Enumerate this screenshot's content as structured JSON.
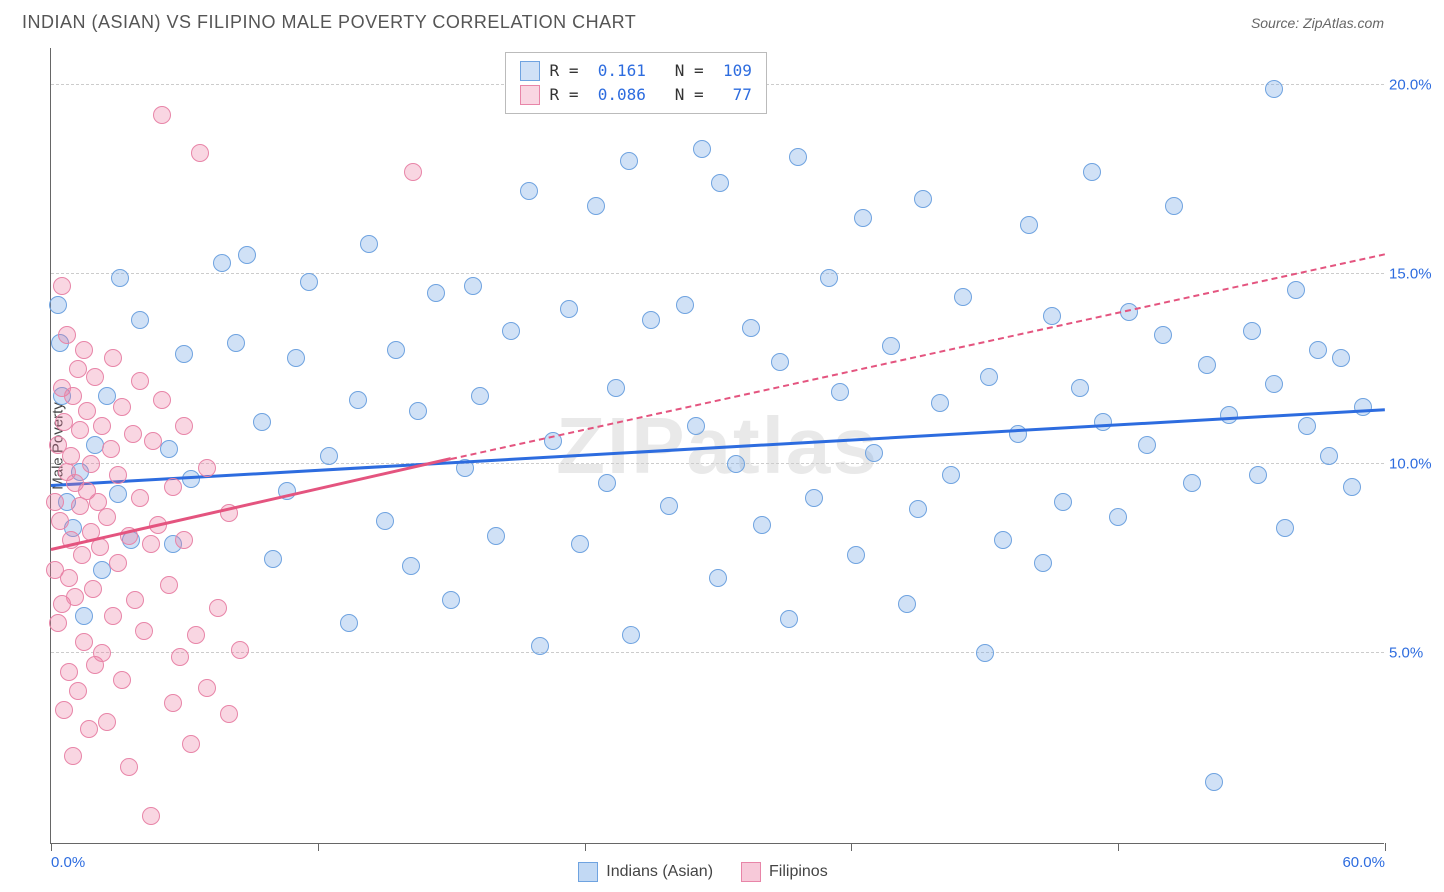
{
  "title": "INDIAN (ASIAN) VS FILIPINO MALE POVERTY CORRELATION CHART",
  "source_label": "Source:",
  "source_value": "ZipAtlas.com",
  "watermark": "ZIPatlas",
  "yaxis_label": "Male Poverty",
  "chart": {
    "type": "scatter",
    "xlim": [
      0,
      60
    ],
    "ylim": [
      0,
      21
    ],
    "x_ticks": [
      0,
      12,
      24,
      36,
      48,
      60
    ],
    "x_tick_labels": [
      "0.0%",
      "",
      "",
      "",
      "",
      "60.0%"
    ],
    "y_gridlines": [
      5,
      10,
      15,
      20
    ],
    "y_tick_labels": [
      "5.0%",
      "10.0%",
      "15.0%",
      "20.0%"
    ],
    "background_color": "#ffffff",
    "grid_color": "#cccccc",
    "axis_color": "#666666",
    "tick_label_color": "#2d6cdf",
    "series": [
      {
        "name": "Indians (Asian)",
        "color_fill": "rgba(120,170,230,0.35)",
        "color_stroke": "#6fa3e0",
        "trend_color": "#2d6cdf",
        "trend_solid": true,
        "trend": {
          "x1": 0,
          "y1": 9.4,
          "x2": 60,
          "y2": 11.4
        },
        "R": "0.161",
        "N": "109",
        "marker_radius": 9,
        "points": [
          [
            0.3,
            14.2
          ],
          [
            0.4,
            13.2
          ],
          [
            0.5,
            11.8
          ],
          [
            0.7,
            9.0
          ],
          [
            1.0,
            8.3
          ],
          [
            1.3,
            9.8
          ],
          [
            1.5,
            6.0
          ],
          [
            2.0,
            10.5
          ],
          [
            2.3,
            7.2
          ],
          [
            2.5,
            11.8
          ],
          [
            3.0,
            9.2
          ],
          [
            3.1,
            14.9
          ],
          [
            3.6,
            8.0
          ],
          [
            4.0,
            13.8
          ],
          [
            5.3,
            10.4
          ],
          [
            5.5,
            7.9
          ],
          [
            6.0,
            12.9
          ],
          [
            6.3,
            9.6
          ],
          [
            7.7,
            15.3
          ],
          [
            8.3,
            13.2
          ],
          [
            8.8,
            15.5
          ],
          [
            9.5,
            11.1
          ],
          [
            10.0,
            7.5
          ],
          [
            10.6,
            9.3
          ],
          [
            11.0,
            12.8
          ],
          [
            11.6,
            14.8
          ],
          [
            12.5,
            10.2
          ],
          [
            13.4,
            5.8
          ],
          [
            13.8,
            11.7
          ],
          [
            14.3,
            15.8
          ],
          [
            15.0,
            8.5
          ],
          [
            15.5,
            13.0
          ],
          [
            16.2,
            7.3
          ],
          [
            16.5,
            11.4
          ],
          [
            17.3,
            14.5
          ],
          [
            18.0,
            6.4
          ],
          [
            18.6,
            9.9
          ],
          [
            19.0,
            14.7
          ],
          [
            19.3,
            11.8
          ],
          [
            20.0,
            8.1
          ],
          [
            20.7,
            13.5
          ],
          [
            21.5,
            17.2
          ],
          [
            22.0,
            5.2
          ],
          [
            22.6,
            10.6
          ],
          [
            23.3,
            14.1
          ],
          [
            23.8,
            7.9
          ],
          [
            24.5,
            16.8
          ],
          [
            25.0,
            9.5
          ],
          [
            25.4,
            12.0
          ],
          [
            26.0,
            18.0
          ],
          [
            26.1,
            5.5
          ],
          [
            27.0,
            13.8
          ],
          [
            27.8,
            8.9
          ],
          [
            28.5,
            14.2
          ],
          [
            29.0,
            11.0
          ],
          [
            29.3,
            18.3
          ],
          [
            30.0,
            7.0
          ],
          [
            30.1,
            17.4
          ],
          [
            30.8,
            10.0
          ],
          [
            31.5,
            13.6
          ],
          [
            32.0,
            8.4
          ],
          [
            32.8,
            12.7
          ],
          [
            33.2,
            5.9
          ],
          [
            33.6,
            18.1
          ],
          [
            34.3,
            9.1
          ],
          [
            35.0,
            14.9
          ],
          [
            35.5,
            11.9
          ],
          [
            36.2,
            7.6
          ],
          [
            36.5,
            16.5
          ],
          [
            37.0,
            10.3
          ],
          [
            37.8,
            13.1
          ],
          [
            38.5,
            6.3
          ],
          [
            39.0,
            8.8
          ],
          [
            39.2,
            17.0
          ],
          [
            40.0,
            11.6
          ],
          [
            40.5,
            9.7
          ],
          [
            41.0,
            14.4
          ],
          [
            42.0,
            5.0
          ],
          [
            42.2,
            12.3
          ],
          [
            42.8,
            8.0
          ],
          [
            43.5,
            10.8
          ],
          [
            44.0,
            16.3
          ],
          [
            44.6,
            7.4
          ],
          [
            45.0,
            13.9
          ],
          [
            45.5,
            9.0
          ],
          [
            46.3,
            12.0
          ],
          [
            46.8,
            17.7
          ],
          [
            47.3,
            11.1
          ],
          [
            48.0,
            8.6
          ],
          [
            48.5,
            14.0
          ],
          [
            49.3,
            10.5
          ],
          [
            50.0,
            13.4
          ],
          [
            50.5,
            16.8
          ],
          [
            51.3,
            9.5
          ],
          [
            52.0,
            12.6
          ],
          [
            52.3,
            1.6
          ],
          [
            53.0,
            11.3
          ],
          [
            54.0,
            13.5
          ],
          [
            54.3,
            9.7
          ],
          [
            55.0,
            12.1
          ],
          [
            55.0,
            19.9
          ],
          [
            55.5,
            8.3
          ],
          [
            56.0,
            14.6
          ],
          [
            56.5,
            11.0
          ],
          [
            57.0,
            13.0
          ],
          [
            57.5,
            10.2
          ],
          [
            58.0,
            12.8
          ],
          [
            58.5,
            9.4
          ],
          [
            59.0,
            11.5
          ]
        ]
      },
      {
        "name": "Filipinos",
        "color_fill": "rgba(236,120,160,0.30)",
        "color_stroke": "#e885a8",
        "trend_color": "#e4547f",
        "trend_solid": false,
        "solid_trend": {
          "x1": 0,
          "y1": 7.7,
          "x2": 18,
          "y2": 10.1
        },
        "dashed_trend": {
          "x1": 18,
          "y1": 10.1,
          "x2": 60,
          "y2": 15.5
        },
        "R": "0.086",
        "N": "77",
        "marker_radius": 9,
        "points": [
          [
            0.2,
            9.0
          ],
          [
            0.2,
            7.2
          ],
          [
            0.3,
            10.5
          ],
          [
            0.3,
            5.8
          ],
          [
            0.4,
            8.5
          ],
          [
            0.5,
            12.0
          ],
          [
            0.5,
            14.7
          ],
          [
            0.5,
            6.3
          ],
          [
            0.6,
            11.1
          ],
          [
            0.6,
            3.5
          ],
          [
            0.7,
            9.8
          ],
          [
            0.7,
            13.4
          ],
          [
            0.8,
            7.0
          ],
          [
            0.8,
            4.5
          ],
          [
            0.9,
            10.2
          ],
          [
            0.9,
            8.0
          ],
          [
            1.0,
            11.8
          ],
          [
            1.0,
            2.3
          ],
          [
            1.1,
            6.5
          ],
          [
            1.1,
            9.5
          ],
          [
            1.2,
            12.5
          ],
          [
            1.2,
            4.0
          ],
          [
            1.3,
            8.9
          ],
          [
            1.3,
            10.9
          ],
          [
            1.4,
            7.6
          ],
          [
            1.5,
            13.0
          ],
          [
            1.5,
            5.3
          ],
          [
            1.6,
            9.3
          ],
          [
            1.6,
            11.4
          ],
          [
            1.7,
            3.0
          ],
          [
            1.8,
            8.2
          ],
          [
            1.8,
            10.0
          ],
          [
            1.9,
            6.7
          ],
          [
            2.0,
            12.3
          ],
          [
            2.0,
            4.7
          ],
          [
            2.1,
            9.0
          ],
          [
            2.2,
            7.8
          ],
          [
            2.3,
            11.0
          ],
          [
            2.3,
            5.0
          ],
          [
            2.5,
            8.6
          ],
          [
            2.5,
            3.2
          ],
          [
            2.7,
            10.4
          ],
          [
            2.8,
            6.0
          ],
          [
            2.8,
            12.8
          ],
          [
            3.0,
            7.4
          ],
          [
            3.0,
            9.7
          ],
          [
            3.2,
            11.5
          ],
          [
            3.2,
            4.3
          ],
          [
            3.5,
            8.1
          ],
          [
            3.5,
            2.0
          ],
          [
            3.7,
            10.8
          ],
          [
            3.8,
            6.4
          ],
          [
            4.0,
            9.1
          ],
          [
            4.0,
            12.2
          ],
          [
            4.2,
            5.6
          ],
          [
            4.5,
            7.9
          ],
          [
            4.5,
            0.7
          ],
          [
            4.6,
            10.6
          ],
          [
            4.8,
            8.4
          ],
          [
            5.0,
            19.2
          ],
          [
            5.0,
            11.7
          ],
          [
            5.3,
            6.8
          ],
          [
            5.5,
            3.7
          ],
          [
            5.5,
            9.4
          ],
          [
            5.8,
            4.9
          ],
          [
            6.0,
            8.0
          ],
          [
            6.0,
            11.0
          ],
          [
            6.3,
            2.6
          ],
          [
            6.5,
            5.5
          ],
          [
            6.7,
            18.2
          ],
          [
            7.0,
            4.1
          ],
          [
            7.0,
            9.9
          ],
          [
            7.5,
            6.2
          ],
          [
            8.0,
            8.7
          ],
          [
            8.0,
            3.4
          ],
          [
            8.5,
            5.1
          ],
          [
            16.3,
            17.7
          ]
        ]
      }
    ],
    "legend_stats": {
      "R_label": "R =",
      "N_label": "N ="
    },
    "bottom_legend": [
      {
        "label": "Indians (Asian)",
        "fill": "rgba(120,170,230,0.45)",
        "stroke": "#6fa3e0"
      },
      {
        "label": "Filipinos",
        "fill": "rgba(236,120,160,0.40)",
        "stroke": "#e885a8"
      }
    ]
  }
}
